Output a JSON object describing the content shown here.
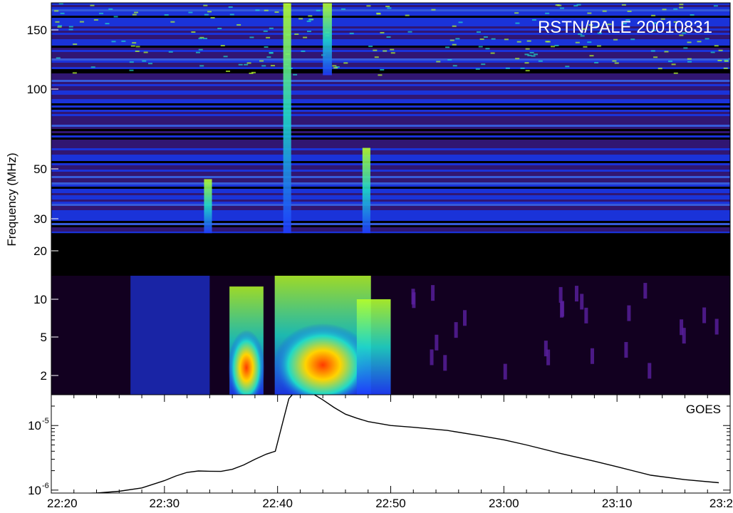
{
  "chart_data": [
    {
      "type": "heatmap",
      "title": "RSTN/PALE 20010831",
      "ylabel": "Frequency (MHz)",
      "yscale": "log",
      "y_ticks": [
        {
          "value": 150,
          "label": "150"
        },
        {
          "value": 100,
          "label": "100"
        },
        {
          "value": 50,
          "label": "50"
        },
        {
          "value": 30,
          "label": "30"
        },
        {
          "value": 20,
          "label": "20"
        },
        {
          "value": 10,
          "label": "10"
        },
        {
          "value": 5,
          "label": "5"
        },
        {
          "value": 2,
          "label": "2"
        }
      ],
      "xlim": [
        "22:20",
        "23:20"
      ],
      "colors": {
        "background": "#000000",
        "low": "#3a1a86",
        "mid": "#1e3cff",
        "high": "#1fd9c9",
        "peak": "#b6ff2a",
        "hot": "#ff3a00"
      },
      "data_gap": {
        "frequency_range_mhz": [
          14,
          25
        ]
      },
      "bursts": [
        {
          "start": "22:40.5",
          "end": "22:41.2",
          "freq_low_mhz": 25,
          "freq_high_mhz": 180,
          "intensity": "high"
        },
        {
          "start": "22:44.0",
          "end": "22:44.8",
          "freq_low_mhz": 110,
          "freq_high_mhz": 180,
          "intensity": "high"
        },
        {
          "start": "22:47.5",
          "end": "22:48.2",
          "freq_low_mhz": 25,
          "freq_high_mhz": 60,
          "intensity": "medium"
        },
        {
          "start": "22:33.5",
          "end": "22:34.2",
          "freq_low_mhz": 25,
          "freq_high_mhz": 45,
          "intensity": "medium"
        },
        {
          "start": "22:36.0",
          "end": "22:38.5",
          "freq_low_mhz": 1.3,
          "freq_high_mhz": 12,
          "intensity": "hot"
        },
        {
          "start": "22:40.0",
          "end": "22:48.0",
          "freq_low_mhz": 1.3,
          "freq_high_mhz": 14,
          "intensity": "hot"
        },
        {
          "start": "22:47.0",
          "end": "22:50.0",
          "freq_low_mhz": 1.3,
          "freq_high_mhz": 10,
          "intensity": "medium"
        },
        {
          "start": "22:27.0",
          "end": "22:34.0",
          "freq_low_mhz": 1.3,
          "freq_high_mhz": 14,
          "intensity": "low"
        }
      ]
    },
    {
      "type": "line",
      "label": "GOES",
      "yscale": "log",
      "ylim": [
        9e-07,
        3e-05
      ],
      "y_ticks": [
        {
          "value": 1e-05,
          "base": "10",
          "exponent": "-5"
        },
        {
          "value": 1e-06,
          "base": "10",
          "exponent": "-6"
        }
      ],
      "xlim": [
        "22:20",
        "23:20"
      ],
      "x_ticks": [
        "22:20",
        "22:30",
        "22:40",
        "22:50",
        "23:00",
        "23:10",
        "23:2"
      ],
      "series": [
        {
          "x": [
            "22:20",
            "22:22",
            "22:24",
            "22:26",
            "22:28",
            "22:30",
            "22:31",
            "22:32",
            "22:33",
            "22:34",
            "22:35",
            "22:36",
            "22:37",
            "22:38",
            "22:39",
            "22:39.8",
            "22:40.5",
            "22:41",
            "22:41.5",
            "22:42",
            "22:42.5",
            "22:43",
            "22:44",
            "22:45",
            "22:46",
            "22:47",
            "22:48",
            "22:50",
            "22:52",
            "22:55",
            "22:58",
            "23:00",
            "23:02",
            "23:05",
            "23:08",
            "23:10",
            "23:13",
            "23:16",
            "23:19"
          ],
          "values": [
            8.7e-07,
            8.8e-07,
            9e-07,
            9.6e-07,
            1.08e-06,
            1.4e-06,
            1.65e-06,
            1.88e-06,
            1.98e-06,
            1.96e-06,
            1.95e-06,
            2.1e-06,
            2.45e-06,
            3e-06,
            3.6e-06,
            4e-06,
            1.2e-05,
            2.6e-05,
            3.3e-05,
            3.5e-05,
            3.4e-05,
            3.2e-05,
            2.5e-05,
            1.9e-05,
            1.5e-05,
            1.3e-05,
            1.15e-05,
            1e-05,
            9.4e-06,
            8.4e-06,
            6.9e-06,
            6e-06,
            5e-06,
            3.7e-06,
            2.8e-06,
            2.3e-06,
            1.7e-06,
            1.45e-06,
            1.3e-06
          ]
        }
      ]
    }
  ]
}
